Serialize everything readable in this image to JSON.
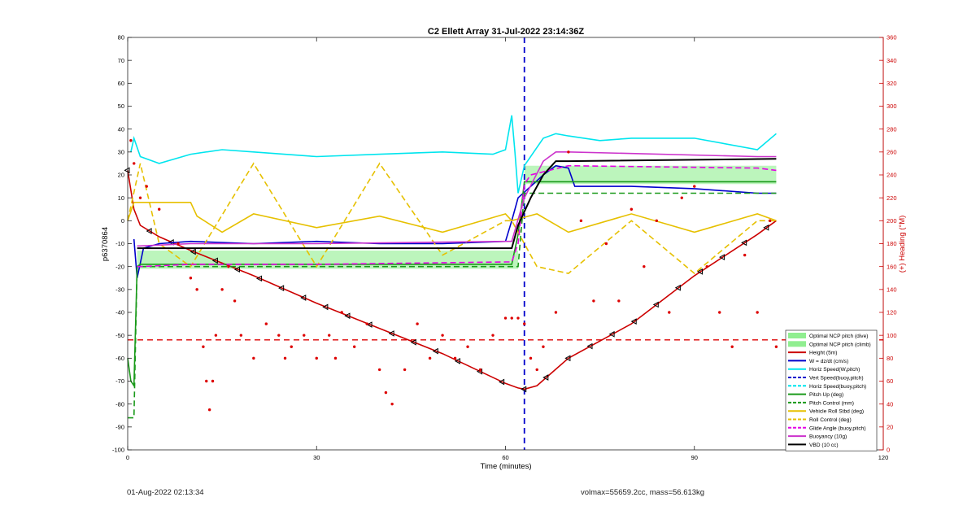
{
  "chart_data": {
    "type": "line",
    "title": "C2 Ellett Array 31-Jul-2022 23:14:36Z",
    "xlabel": "Time (minutes)",
    "ylabel_left": "p6370864",
    "ylabel_right": "(+) Heading (°M)",
    "xlim": [
      0,
      120
    ],
    "ylim_left": [
      -100,
      80
    ],
    "ylim_right": [
      0,
      360
    ],
    "x_ticks": [
      "0",
      "30",
      "60",
      "90",
      "120"
    ],
    "y_ticks_left": [
      "80",
      "70",
      "60",
      "50",
      "40",
      "30",
      "20",
      "10",
      "0",
      "-10",
      "-20",
      "-30",
      "-40",
      "-50",
      "-60",
      "-70",
      "-80",
      "-90",
      "-100"
    ],
    "y_ticks_right": [
      "360",
      "340",
      "320",
      "300",
      "280",
      "260",
      "240",
      "220",
      "200",
      "180",
      "160",
      "140",
      "120",
      "100",
      "80",
      "60",
      "40",
      "20",
      "0"
    ],
    "legend_position": "bottom-right",
    "legend": [
      {
        "label": "Optimal NCP pitch (dive)",
        "color": "#90ee90",
        "style": "patch"
      },
      {
        "label": "Optimal NCP pitch (climb)",
        "color": "#90ee90",
        "style": "patch"
      },
      {
        "label": "Height (5m)",
        "color": "#cc0000",
        "style": "solid"
      },
      {
        "label": "W = dz/dt (cm/s)",
        "color": "#0000cc",
        "style": "solid"
      },
      {
        "label": "Horiz Speed(W,pitch)",
        "color": "#00e5ee",
        "style": "solid"
      },
      {
        "label": "Vert Speed(buoy,pitch)",
        "color": "#0000cc",
        "style": "dashed"
      },
      {
        "label": "Horiz Speed(buoy,pitch)",
        "color": "#00e5ee",
        "style": "dashed"
      },
      {
        "label": "Pitch Up (deg)",
        "color": "#1a9a1a",
        "style": "solid"
      },
      {
        "label": "Pitch Control (mm)",
        "color": "#1a9a1a",
        "style": "dashed"
      },
      {
        "label": "Vehicle Roll Stbd (deg)",
        "color": "#e6c000",
        "style": "solid"
      },
      {
        "label": "Roll Control (deg)",
        "color": "#e6c000",
        "style": "dashed"
      },
      {
        "label": "Glide Angle (buoy,pitch)",
        "color": "#e600e6",
        "style": "dashed"
      },
      {
        "label": "Buoyancy (10g)",
        "color": "#cc33cc",
        "style": "solid"
      },
      {
        "label": "VBD (10 cc)",
        "color": "#000000",
        "style": "solid"
      }
    ],
    "bands": [
      {
        "name": "Optimal NCP pitch (dive)",
        "x": [
          1.5,
          62
        ],
        "y": [
          -21,
          -13
        ]
      },
      {
        "name": "Optimal NCP pitch (climb)",
        "x": [
          63,
          103
        ],
        "y": [
          16,
          24
        ]
      }
    ],
    "reference_lines": [
      {
        "axis": "y",
        "value": -52,
        "color": "#dd0000",
        "style": "dashed"
      },
      {
        "axis": "x",
        "value": 63,
        "color": "#0000cc",
        "style": "dashed"
      }
    ],
    "series": [
      {
        "name": "Height (5m)",
        "color": "#cc0000",
        "style": "solid",
        "x": [
          0,
          1,
          2,
          5,
          10,
          20,
          30,
          40,
          50,
          60,
          62,
          63,
          65,
          70,
          80,
          90,
          100,
          103
        ],
        "y": [
          22,
          5,
          -2,
          -7,
          -13,
          -24,
          -36,
          -47,
          -58,
          -71,
          -73,
          -73.5,
          -72,
          -60,
          -45,
          -24,
          -6,
          0
        ],
        "markers": true
      },
      {
        "name": "W = dz/dt (cm/s)",
        "color": "#0000cc",
        "style": "solid",
        "x": [
          1,
          1.5,
          2.5,
          5,
          10,
          20,
          30,
          40,
          50,
          60,
          61,
          62,
          64,
          66,
          68,
          70,
          71,
          75,
          80,
          90,
          100,
          103
        ],
        "y": [
          -8,
          -25,
          -12,
          -10,
          -9,
          -10,
          -9,
          -10,
          -10,
          -9,
          0,
          10,
          15,
          20,
          24,
          23,
          15,
          15,
          15,
          14,
          12,
          12
        ]
      },
      {
        "name": "Horiz Speed(W,pitch)",
        "color": "#00e5ee",
        "style": "solid",
        "x": [
          0.5,
          1,
          2,
          5,
          10,
          15,
          20,
          30,
          40,
          50,
          58,
          60,
          61,
          61.5,
          62,
          63,
          66,
          68,
          70,
          75,
          80,
          90,
          100,
          103
        ],
        "y": [
          30,
          36,
          28,
          25,
          29,
          31,
          30,
          28,
          29,
          30,
          29,
          31,
          46,
          30,
          12,
          24,
          36,
          38,
          37,
          35,
          36,
          36,
          31,
          38
        ]
      },
      {
        "name": "Pitch Up (deg)",
        "color": "#1a9a1a",
        "style": "solid",
        "x": [
          0,
          0.5,
          1,
          1.5,
          2,
          5,
          30,
          61,
          62,
          63,
          64,
          70,
          103
        ],
        "y": [
          -60,
          -70,
          -72,
          -20,
          -19,
          -19,
          -19,
          -19,
          -6,
          17,
          17,
          17,
          17
        ]
      },
      {
        "name": "Pitch Control (mm)",
        "color": "#1a9a1a",
        "style": "dashed",
        "x": [
          0,
          1,
          1.5,
          1.6,
          60,
          62,
          63,
          70,
          103
        ],
        "y": [
          -86,
          -86,
          -20,
          -20,
          -20,
          -20,
          12,
          12,
          12
        ]
      },
      {
        "name": "Vehicle Roll Stbd (deg)",
        "color": "#e6c000",
        "style": "solid",
        "x": [
          0,
          1,
          2,
          10,
          11,
          15,
          20,
          30,
          40,
          50,
          60,
          61,
          65,
          70,
          80,
          90,
          100,
          103
        ],
        "y": [
          0,
          8,
          8,
          8,
          2,
          -5,
          3,
          -3,
          2,
          -5,
          3,
          0,
          3,
          -5,
          3,
          -5,
          3,
          0
        ]
      },
      {
        "name": "Roll Control (deg)",
        "color": "#e6c000",
        "style": "dashed",
        "x": [
          0,
          2,
          5,
          10,
          20,
          30,
          40,
          50,
          60,
          61,
          65,
          70,
          80,
          90,
          100,
          103
        ],
        "y": [
          0,
          25,
          -10,
          -20,
          25,
          -20,
          25,
          -15,
          0,
          0,
          -20,
          -23,
          0,
          -23,
          0,
          0
        ]
      },
      {
        "name": "Glide Angle (buoy,pitch)",
        "color": "#e600e6",
        "style": "dashed",
        "x": [
          1.5,
          2,
          10,
          30,
          60,
          61,
          62,
          63,
          64,
          70,
          100,
          103
        ],
        "y": [
          -20,
          -20,
          -19,
          -19,
          -18,
          -18,
          -10,
          16,
          20,
          24,
          23,
          22
        ]
      },
      {
        "name": "Buoyancy (10g)",
        "color": "#cc33cc",
        "style": "solid",
        "x": [
          1.5,
          2,
          10,
          30,
          60,
          61,
          63,
          66,
          68,
          70,
          100,
          103
        ],
        "y": [
          -11,
          -11,
          -10,
          -10,
          -9,
          -9,
          10,
          26,
          30,
          30,
          28,
          28
        ]
      },
      {
        "name": "VBD (10 cc)",
        "color": "#000000",
        "style": "solid",
        "x": [
          1.5,
          2,
          10,
          30,
          61,
          62,
          64,
          66,
          68,
          70,
          103
        ],
        "y": [
          -12,
          -12,
          -12,
          -12,
          -12,
          -2,
          10,
          20,
          26,
          26,
          27
        ]
      },
      {
        "name": "Vert Speed(buoy,pitch)",
        "color": "#0000cc",
        "style": "dashed",
        "x": [
          63,
          63
        ],
        "y": [
          -100,
          80
        ]
      },
      {
        "name": "(+) Heading (°M)",
        "axis": "right",
        "color": "#dd0000",
        "style": "dots",
        "x": [
          0.5,
          1,
          2,
          3,
          5,
          8,
          10,
          11,
          12,
          12.5,
          13,
          13.5,
          14,
          15,
          16,
          17,
          18,
          20,
          22,
          24,
          25,
          26,
          28,
          30,
          32,
          33,
          34,
          36,
          38,
          40,
          41,
          42,
          44,
          46,
          48,
          50,
          52,
          54,
          56,
          58,
          60,
          61,
          62,
          63,
          64,
          65,
          66,
          68,
          70,
          72,
          74,
          76,
          78,
          80,
          82,
          84,
          86,
          88,
          90,
          92,
          94,
          96,
          98,
          100,
          102,
          103
        ],
        "y": [
          270,
          250,
          220,
          230,
          210,
          180,
          150,
          140,
          90,
          60,
          35,
          60,
          100,
          140,
          160,
          130,
          100,
          80,
          110,
          100,
          80,
          90,
          100,
          80,
          100,
          80,
          120,
          90,
          110,
          70,
          50,
          40,
          70,
          110,
          80,
          100,
          80,
          90,
          70,
          100,
          115,
          115,
          115,
          110,
          80,
          70,
          90,
          120,
          260,
          200,
          130,
          180,
          130,
          210,
          160,
          200,
          120,
          220,
          230,
          160,
          120,
          90,
          170,
          120,
          200,
          90
        ]
      }
    ]
  },
  "footer": {
    "timestamp": "01-Aug-2022 02:13:34",
    "stats": "volmax=55659.2cc, mass=56.613kg"
  }
}
